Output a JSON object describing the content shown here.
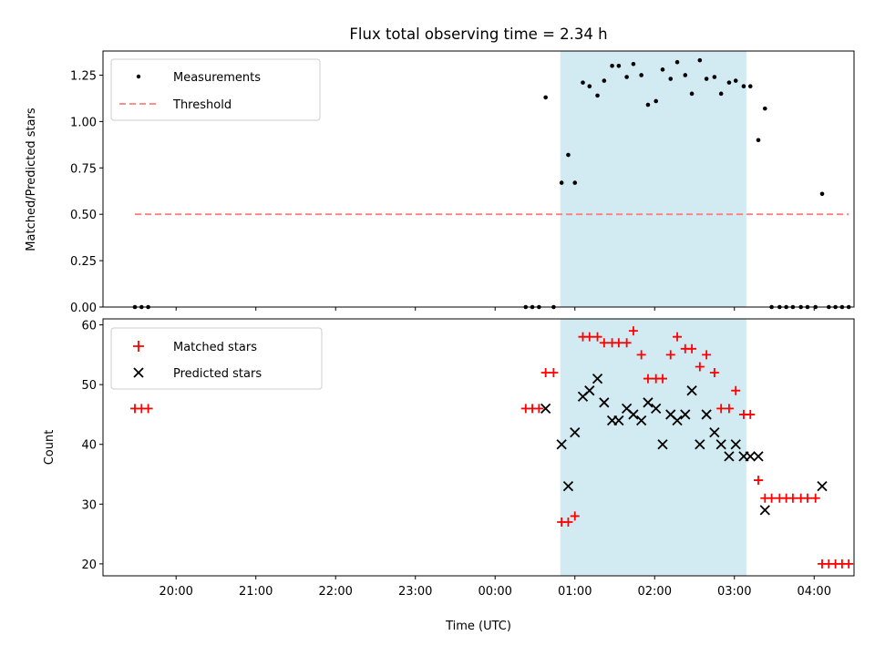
{
  "chart_data": [
    {
      "type": "scatter",
      "title": "Flux total observing time = 2.34 h",
      "ylabel": "Matched/Predicted stars",
      "xlabel": "",
      "ylim": [
        0,
        1.38
      ],
      "xlim": [
        "19:05",
        "04:30"
      ],
      "yticks": [
        "0.00",
        "0.25",
        "0.50",
        "0.75",
        "1.00",
        "1.25"
      ],
      "legend_position": "top-left",
      "shaded_interval": [
        "00:49",
        "03:09"
      ],
      "series": [
        {
          "name": "Measurements",
          "marker": "dot",
          "color": "#000000",
          "points": [
            [
              "19:29",
              0
            ],
            [
              "19:34",
              0
            ],
            [
              "19:39",
              0
            ],
            [
              "00:23",
              0
            ],
            [
              "00:28",
              0
            ],
            [
              "00:33",
              0
            ],
            [
              "00:38",
              1.13
            ],
            [
              "00:44",
              0
            ],
            [
              "00:50",
              0.67
            ],
            [
              "00:55",
              0.82
            ],
            [
              "01:00",
              0.67
            ],
            [
              "01:06",
              1.21
            ],
            [
              "01:11",
              1.19
            ],
            [
              "01:17",
              1.14
            ],
            [
              "01:22",
              1.22
            ],
            [
              "01:28",
              1.3
            ],
            [
              "01:33",
              1.3
            ],
            [
              "01:39",
              1.24
            ],
            [
              "01:44",
              1.31
            ],
            [
              "01:50",
              1.25
            ],
            [
              "01:55",
              1.09
            ],
            [
              "02:01",
              1.11
            ],
            [
              "02:06",
              1.28
            ],
            [
              "02:12",
              1.23
            ],
            [
              "02:17",
              1.32
            ],
            [
              "02:23",
              1.25
            ],
            [
              "02:28",
              1.15
            ],
            [
              "02:34",
              1.33
            ],
            [
              "02:39",
              1.23
            ],
            [
              "02:45",
              1.24
            ],
            [
              "02:50",
              1.15
            ],
            [
              "02:56",
              1.21
            ],
            [
              "03:01",
              1.22
            ],
            [
              "03:07",
              1.19
            ],
            [
              "03:12",
              1.19
            ],
            [
              "03:18",
              0.9
            ],
            [
              "03:23",
              1.07
            ],
            [
              "03:28",
              0
            ],
            [
              "03:34",
              0
            ],
            [
              "03:39",
              0
            ],
            [
              "03:44",
              0
            ],
            [
              "03:50",
              0
            ],
            [
              "03:55",
              0
            ],
            [
              "04:01",
              0
            ],
            [
              "04:06",
              0.61
            ],
            [
              "04:11",
              0
            ],
            [
              "04:16",
              0
            ],
            [
              "04:21",
              0
            ],
            [
              "04:26",
              0
            ]
          ]
        },
        {
          "name": "Threshold",
          "line_style": "dashed",
          "color": "#ff7f7f",
          "points": [
            [
              "19:29",
              0.5
            ],
            [
              "04:26",
              0.5
            ]
          ]
        }
      ]
    },
    {
      "type": "scatter",
      "title": "",
      "ylabel": "Count",
      "xlabel": "Time (UTC)",
      "ylim": [
        18,
        61
      ],
      "yticks": [
        "20",
        "30",
        "40",
        "50",
        "60"
      ],
      "xlim": [
        "19:05",
        "04:30"
      ],
      "xticks": [
        "20:00",
        "21:00",
        "22:00",
        "23:00",
        "00:00",
        "01:00",
        "02:00",
        "03:00",
        "04:00"
      ],
      "legend_position": "top-left",
      "shaded_interval": [
        "00:49",
        "03:09"
      ],
      "series": [
        {
          "name": "Matched stars",
          "marker": "plus",
          "color": "#ff0000",
          "points": [
            [
              "19:29",
              46
            ],
            [
              "19:34",
              46
            ],
            [
              "19:39",
              46
            ],
            [
              "00:23",
              46
            ],
            [
              "00:28",
              46
            ],
            [
              "00:33",
              46
            ],
            [
              "00:38",
              52
            ],
            [
              "00:44",
              52
            ],
            [
              "00:50",
              27
            ],
            [
              "00:55",
              27
            ],
            [
              "01:00",
              28
            ],
            [
              "01:06",
              58
            ],
            [
              "01:11",
              58
            ],
            [
              "01:17",
              58
            ],
            [
              "01:22",
              57
            ],
            [
              "01:28",
              57
            ],
            [
              "01:33",
              57
            ],
            [
              "01:39",
              57
            ],
            [
              "01:44",
              59
            ],
            [
              "01:50",
              55
            ],
            [
              "01:55",
              51
            ],
            [
              "02:01",
              51
            ],
            [
              "02:06",
              51
            ],
            [
              "02:12",
              55
            ],
            [
              "02:17",
              58
            ],
            [
              "02:23",
              56
            ],
            [
              "02:28",
              56
            ],
            [
              "02:34",
              53
            ],
            [
              "02:39",
              55
            ],
            [
              "02:45",
              52
            ],
            [
              "02:50",
              46
            ],
            [
              "02:56",
              46
            ],
            [
              "03:01",
              49
            ],
            [
              "03:07",
              45
            ],
            [
              "03:12",
              45
            ],
            [
              "03:18",
              34
            ],
            [
              "03:23",
              31
            ],
            [
              "03:28",
              31
            ],
            [
              "03:34",
              31
            ],
            [
              "03:39",
              31
            ],
            [
              "03:44",
              31
            ],
            [
              "03:50",
              31
            ],
            [
              "03:55",
              31
            ],
            [
              "04:01",
              31
            ],
            [
              "04:06",
              20
            ],
            [
              "04:11",
              20
            ],
            [
              "04:16",
              20
            ],
            [
              "04:21",
              20
            ],
            [
              "04:26",
              20
            ]
          ]
        },
        {
          "name": "Predicted stars",
          "marker": "x",
          "color": "#000000",
          "points": [
            [
              "00:38",
              46
            ],
            [
              "00:50",
              40
            ],
            [
              "00:55",
              33
            ],
            [
              "01:00",
              42
            ],
            [
              "01:06",
              48
            ],
            [
              "01:11",
              49
            ],
            [
              "01:17",
              51
            ],
            [
              "01:22",
              47
            ],
            [
              "01:28",
              44
            ],
            [
              "01:33",
              44
            ],
            [
              "01:39",
              46
            ],
            [
              "01:44",
              45
            ],
            [
              "01:50",
              44
            ],
            [
              "01:55",
              47
            ],
            [
              "02:01",
              46
            ],
            [
              "02:06",
              40
            ],
            [
              "02:12",
              45
            ],
            [
              "02:17",
              44
            ],
            [
              "02:23",
              45
            ],
            [
              "02:28",
              49
            ],
            [
              "02:34",
              40
            ],
            [
              "02:39",
              45
            ],
            [
              "02:45",
              42
            ],
            [
              "02:50",
              40
            ],
            [
              "02:56",
              38
            ],
            [
              "03:01",
              40
            ],
            [
              "03:07",
              38
            ],
            [
              "03:12",
              38
            ],
            [
              "03:18",
              38
            ],
            [
              "03:23",
              29
            ],
            [
              "04:06",
              33
            ]
          ]
        }
      ]
    }
  ]
}
